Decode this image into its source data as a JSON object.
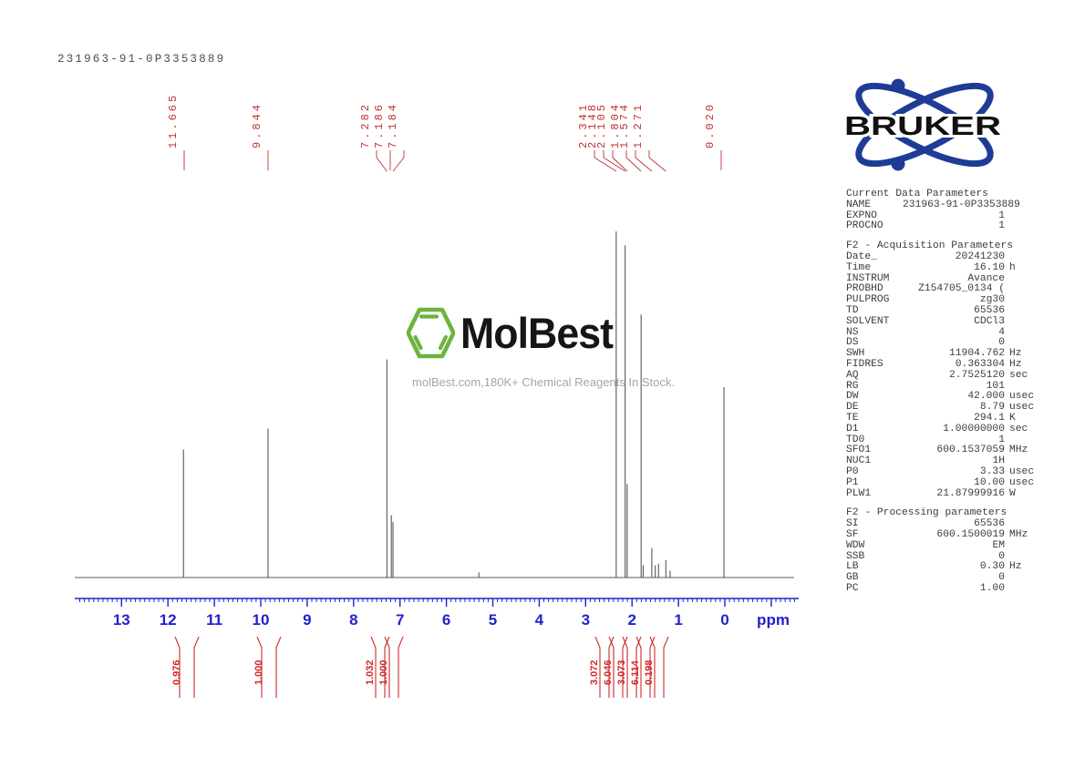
{
  "page": {
    "title": "231963-91-0P3353889"
  },
  "bruker_logo": {
    "text": "BRUKER"
  },
  "watermark": {
    "brand": "MolBest",
    "tagline": "molBest.com,180K+ Chemical Reagents In Stock."
  },
  "axis": {
    "tick_labels": [
      "13",
      "12",
      "11",
      "10",
      "9",
      "8",
      "7",
      "6",
      "5",
      "4",
      "3",
      "2",
      "1",
      "0"
    ],
    "unit_label": "ppm"
  },
  "peak_labels": [
    "11.665",
    "9.844",
    "7.282",
    "7.186",
    "7.184",
    "2.341",
    "2.148",
    "2.105",
    "1.804",
    "1.574",
    "1.271",
    "0.020"
  ],
  "integral_labels": [
    "0.976",
    "1.000",
    "1.032",
    "1.000",
    "3.072",
    "6.046",
    "3.073",
    "6.114",
    "0.198"
  ],
  "parameters": {
    "sections": [
      {
        "header": "Current Data Parameters",
        "rows": [
          [
            "NAME",
            "231963-91-0P3353889",
            ""
          ],
          [
            "EXPNO",
            "1",
            ""
          ],
          [
            "PROCNO",
            "1",
            ""
          ]
        ]
      },
      {
        "header": "F2 - Acquisition Parameters",
        "rows": [
          [
            "Date_",
            "20241230",
            ""
          ],
          [
            "Time",
            "16.10",
            "h"
          ],
          [
            "INSTRUM",
            "Avance",
            ""
          ],
          [
            "PROBHD",
            "Z154705_0134 (",
            ""
          ],
          [
            "PULPROG",
            "zg30",
            ""
          ],
          [
            "TD",
            "65536",
            ""
          ],
          [
            "SOLVENT",
            "CDCl3",
            ""
          ],
          [
            "NS",
            "4",
            ""
          ],
          [
            "DS",
            "0",
            ""
          ],
          [
            "SWH",
            "11904.762",
            "Hz"
          ],
          [
            "FIDRES",
            "0.363304",
            "Hz"
          ],
          [
            "AQ",
            "2.7525120",
            "sec"
          ],
          [
            "RG",
            "101",
            ""
          ],
          [
            "DW",
            "42.000",
            "usec"
          ],
          [
            "DE",
            "8.79",
            "usec"
          ],
          [
            "TE",
            "294.1",
            "K"
          ],
          [
            "D1",
            "1.00000000",
            "sec"
          ],
          [
            "TD0",
            "1",
            ""
          ],
          [
            "SFO1",
            "600.1537059",
            "MHz"
          ],
          [
            "NUC1",
            "1H",
            ""
          ],
          [
            "P0",
            "3.33",
            "usec"
          ],
          [
            "P1",
            "10.00",
            "usec"
          ],
          [
            "PLW1",
            "21.87999916",
            "W"
          ]
        ]
      },
      {
        "header": "F2 - Processing parameters",
        "rows": [
          [
            "SI",
            "65536",
            ""
          ],
          [
            "SF",
            "600.1500019",
            "MHz"
          ],
          [
            "WDW",
            "EM",
            ""
          ],
          [
            "SSB",
            "0",
            ""
          ],
          [
            "LB",
            "0.30",
            "Hz"
          ],
          [
            "GB",
            "0",
            ""
          ],
          [
            "PC",
            "1.00",
            ""
          ]
        ]
      }
    ]
  },
  "chart_data": {
    "type": "line",
    "subtype": "1H NMR spectrum",
    "title": "231963-91-0P3353889",
    "xlabel": "ppm",
    "x_axis_reversed": true,
    "x_range": [
      14.0,
      -1.6
    ],
    "x_ticks": [
      13,
      12,
      11,
      10,
      9,
      8,
      7,
      6,
      5,
      4,
      3,
      2,
      1,
      0
    ],
    "minor_tick_step_ppm": 0.1,
    "grid": false,
    "peaks": [
      {
        "ppm": 11.665,
        "intensity": 37,
        "labeled": true
      },
      {
        "ppm": 9.844,
        "intensity": 43,
        "labeled": true
      },
      {
        "ppm": 7.282,
        "intensity": 63,
        "labeled": true
      },
      {
        "ppm": 7.186,
        "intensity": 18,
        "labeled": true
      },
      {
        "ppm": 7.184,
        "intensity": 16,
        "labeled": true
      },
      {
        "ppm": 5.3,
        "intensity": 1.5,
        "labeled": false
      },
      {
        "ppm": 2.341,
        "intensity": 100,
        "labeled": true
      },
      {
        "ppm": 2.148,
        "intensity": 96,
        "labeled": true
      },
      {
        "ppm": 2.105,
        "intensity": 27,
        "labeled": true
      },
      {
        "ppm": 1.804,
        "intensity": 76,
        "labeled": true
      },
      {
        "ppm": 1.76,
        "intensity": 3.5,
        "labeled": false
      },
      {
        "ppm": 1.574,
        "intensity": 8.5,
        "labeled": true
      },
      {
        "ppm": 1.5,
        "intensity": 3.5,
        "labeled": false
      },
      {
        "ppm": 1.43,
        "intensity": 4,
        "labeled": false
      },
      {
        "ppm": 1.271,
        "intensity": 5,
        "labeled": true
      },
      {
        "ppm": 1.18,
        "intensity": 2,
        "labeled": false
      },
      {
        "ppm": 0.02,
        "intensity": 55,
        "labeled": true
      }
    ],
    "integrals": [
      {
        "ppm": 11.66,
        "value": 0.976,
        "display": "0.976"
      },
      {
        "ppm": 9.84,
        "value": 1.0,
        "display": "1.000"
      },
      {
        "ppm": 7.28,
        "value": 1.032,
        "display": "1.032"
      },
      {
        "ppm": 7.19,
        "value": 1.0,
        "display": "1.000"
      },
      {
        "ppm": 2.34,
        "value": 3.072,
        "display": "3.072"
      },
      {
        "ppm": 2.13,
        "value": 6.046,
        "display": "6.046"
      },
      {
        "ppm": 1.8,
        "value": 3.073,
        "display": "3.073"
      },
      {
        "ppm": 1.57,
        "value": 6.114,
        "display": "6.114"
      },
      {
        "ppm": 1.27,
        "value": 0.198,
        "display": "0.198"
      }
    ],
    "colors": {
      "trace": "#585858",
      "axis": "#2222cc",
      "annotations_red": "#c03030",
      "bruker_blue": "#1e3c96",
      "molbest_green": "#6cb33f"
    }
  }
}
